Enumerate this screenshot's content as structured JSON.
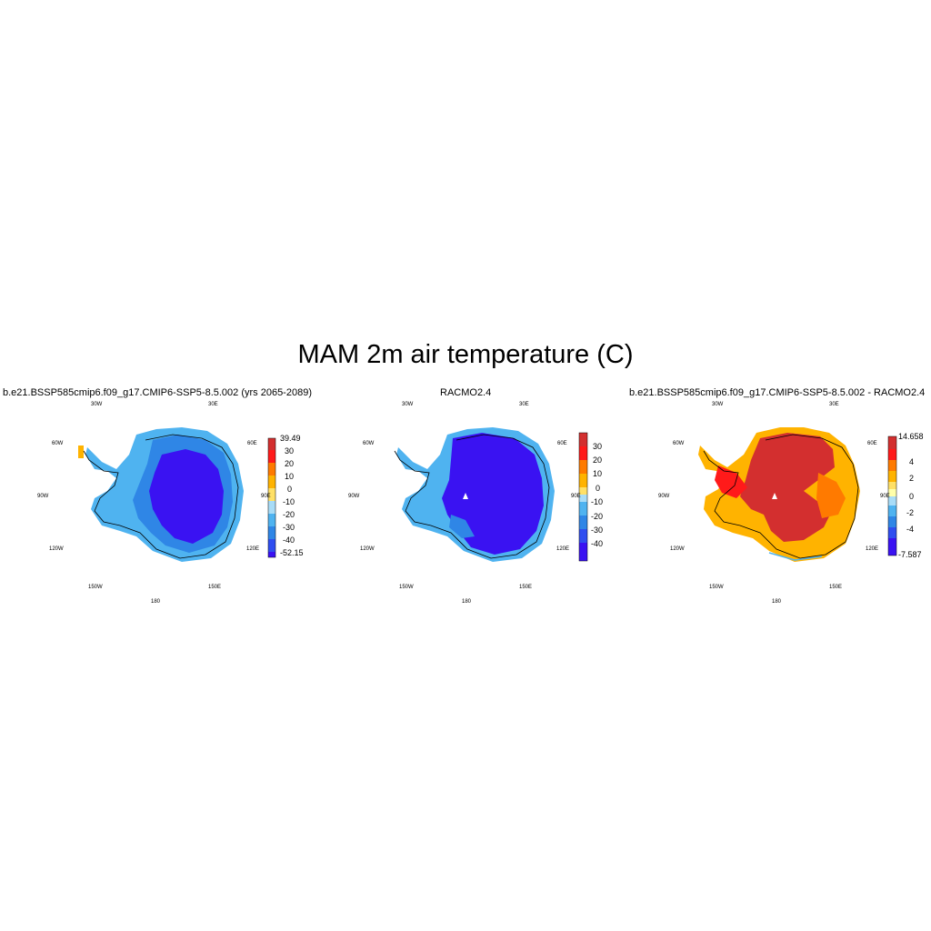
{
  "title": "MAM 2m air temperature (C)",
  "panels": [
    {
      "title": "b.e21.BSSP585cmip6.f09_g17.CMIP6-SSP5-8.5.002 (yrs 2065-2089)",
      "lon_labels": [
        "30W",
        "30E",
        "60W",
        "60E",
        "90W",
        "90E",
        "120W",
        "120E",
        "150W",
        "150E",
        "180"
      ],
      "colorbar": {
        "labels": [
          "39.49",
          "30",
          "20",
          "10",
          "0",
          "-10",
          "-20",
          "-30",
          "-40",
          "-52.15"
        ],
        "colors": [
          "#d32f2f",
          "#ff1a1a",
          "#ff7a00",
          "#ffb300",
          "#ffe066",
          "#a8dcf7",
          "#4fb3f0",
          "#2f86e6",
          "#2f4ef0",
          "#3a12f2"
        ]
      }
    },
    {
      "title": "RACMO2.4",
      "lon_labels": [
        "30W",
        "30E",
        "60W",
        "60E",
        "90W",
        "90E",
        "120W",
        "120E",
        "150W",
        "150E",
        "180"
      ],
      "colorbar": {
        "labels": [
          "30",
          "20",
          "10",
          "0",
          "-10",
          "-20",
          "-30",
          "-40"
        ],
        "colors": [
          "#d32f2f",
          "#ff1a1a",
          "#ff7a00",
          "#ffb300",
          "#ffe066",
          "#a8dcf7",
          "#4fb3f0",
          "#2f86e6",
          "#2f4ef0",
          "#3a12f2"
        ]
      }
    },
    {
      "title": "b.e21.BSSP585cmip6.f09_g17.CMIP6-SSP5-8.5.002 - RACMO2.4",
      "lon_labels": [
        "30W",
        "30E",
        "60W",
        "60E",
        "90W",
        "90E",
        "120W",
        "120E",
        "150W",
        "150E",
        "180"
      ],
      "colorbar": {
        "labels": [
          "14.658",
          "4",
          "2",
          "0",
          "-2",
          "-4",
          "-7.587"
        ],
        "colors": [
          "#d32f2f",
          "#ff1a1a",
          "#ff7a00",
          "#ffb300",
          "#ffe066",
          "#a8dcf7",
          "#4fb3f0",
          "#2f86e6",
          "#2f4ef0",
          "#3a12f2"
        ]
      }
    }
  ]
}
